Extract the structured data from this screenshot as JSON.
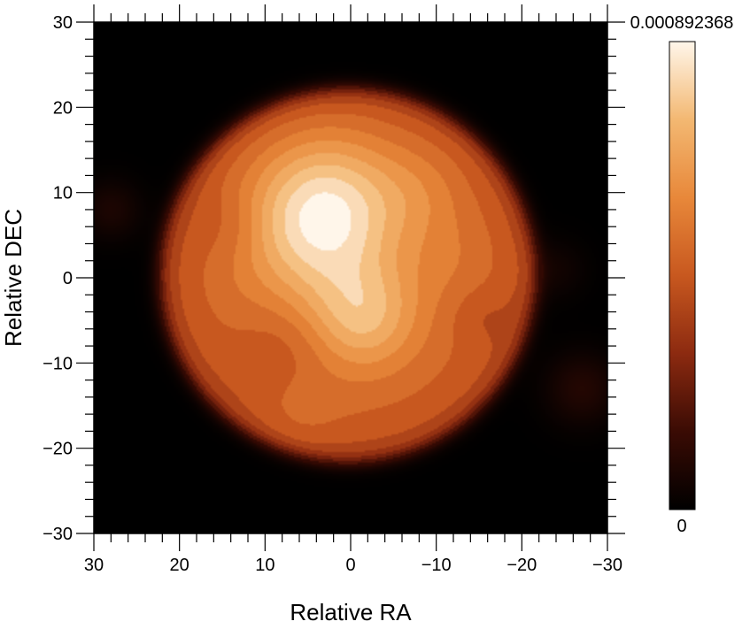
{
  "chart_data": {
    "type": "heatmap",
    "title": "",
    "xlabel": "Relative RA",
    "ylabel": "Relative DEC",
    "xlim": [
      30,
      -30
    ],
    "ylim": [
      -30,
      30
    ],
    "x_ticks": [
      30,
      20,
      10,
      0,
      -10,
      -20,
      -30
    ],
    "y_ticks": [
      -30,
      -20,
      -10,
      0,
      10,
      20,
      30
    ],
    "x_tick_labels": [
      "30",
      "20",
      "10",
      "0",
      "−10",
      "−20",
      "−30"
    ],
    "y_tick_labels": [
      "−30",
      "−20",
      "−10",
      "0",
      "10",
      "20",
      "30"
    ],
    "grid": false,
    "colormap": {
      "name": "heat",
      "stops": [
        "#000000",
        "#3a0b04",
        "#8c2a10",
        "#c8581f",
        "#e8883a",
        "#f3b872",
        "#fff6ea"
      ]
    },
    "colorbar": {
      "min": 0,
      "max": 0.000892368,
      "max_label": "0.000892368",
      "min_label": "0"
    },
    "disk": {
      "center_ra": 0.3,
      "center_dec": 0.3,
      "radius": 22.0,
      "base_level": 0.55,
      "edge_level": 0.3
    },
    "bright_spots": [
      {
        "ra": 3,
        "dec": 7.5,
        "sigma": 6,
        "amplitude": 0.44
      },
      {
        "ra": -1.5,
        "dec": -4.5,
        "sigma": 4.5,
        "amplitude": 0.27
      },
      {
        "ra": 8,
        "dec": 0,
        "sigma": 6,
        "amplitude": 0.06
      },
      {
        "ra": 6,
        "dec": -16,
        "sigma": 3.5,
        "amplitude": 0.05
      },
      {
        "ra": -8,
        "dec": 10,
        "sigma": 4,
        "amplitude": 0.08
      },
      {
        "ra": -12,
        "dec": 2,
        "sigma": 4,
        "amplitude": 0.05
      }
    ],
    "dark_spots": [
      {
        "ra": 8,
        "dec": -8,
        "sigma": 4,
        "amplitude": 0.08
      },
      {
        "ra": 14,
        "dec": 6,
        "sigma": 3,
        "amplitude": 0.06
      },
      {
        "ra": -15,
        "dec": -4.5,
        "sigma": 2.5,
        "amplitude": 0.06
      }
    ],
    "faint_features": [
      {
        "ra": 28,
        "dec": 8,
        "sigma": 2.5,
        "amplitude": 0.08
      },
      {
        "ra": -27,
        "dec": -13,
        "sigma": 3,
        "amplitude": 0.1
      },
      {
        "ra": -24,
        "dec": 1,
        "sigma": 2.5,
        "amplitude": 0.05
      }
    ]
  }
}
